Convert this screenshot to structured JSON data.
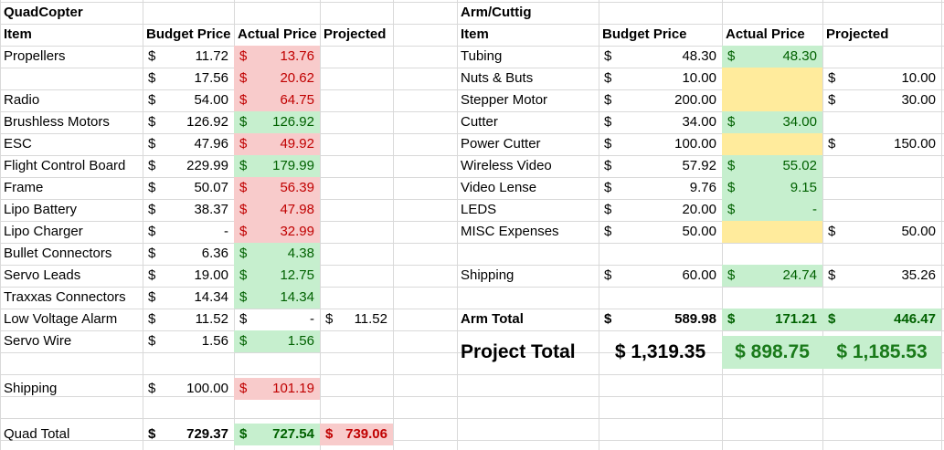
{
  "quad": {
    "title": "QuadCopter",
    "headers": {
      "item": "Item",
      "budget": "Budget Price",
      "actual": "Actual Price",
      "projected": "Projected"
    },
    "rows": [
      {
        "item": "Propellers",
        "budget": "11.72",
        "actual": "13.76",
        "actual_status": "red",
        "projected": ""
      },
      {
        "item": "",
        "budget": "17.56",
        "actual": "20.62",
        "actual_status": "red",
        "projected": ""
      },
      {
        "item": "Radio",
        "budget": "54.00",
        "actual": "64.75",
        "actual_status": "red",
        "projected": ""
      },
      {
        "item": "Brushless Motors",
        "budget": "126.92",
        "actual": "126.92",
        "actual_status": "green",
        "projected": ""
      },
      {
        "item": "ESC",
        "budget": "47.96",
        "actual": "49.92",
        "actual_status": "red",
        "projected": ""
      },
      {
        "item": "Flight Control Board",
        "budget": "229.99",
        "actual": "179.99",
        "actual_status": "green",
        "projected": ""
      },
      {
        "item": "Frame",
        "budget": "50.07",
        "actual": "56.39",
        "actual_status": "red",
        "projected": ""
      },
      {
        "item": "Lipo Battеry",
        "budget": "38.37",
        "actual": "47.98",
        "actual_status": "red",
        "projected": ""
      },
      {
        "item": "Lipo Charger",
        "budget": "-",
        "actual": "32.99",
        "actual_status": "red",
        "projected": ""
      },
      {
        "item": "Bullet Connectors",
        "budget": "6.36",
        "actual": "4.38",
        "actual_status": "green",
        "projected": ""
      },
      {
        "item": "Servo Leads",
        "budget": "19.00",
        "actual": "12.75",
        "actual_status": "green",
        "projected": ""
      },
      {
        "item": "Traxxas Connectors",
        "budget": "14.34",
        "actual": "14.34",
        "actual_status": "green",
        "projected": ""
      },
      {
        "item": "Low Voltage Alarm",
        "budget": "11.52",
        "actual": "-",
        "actual_status": "none",
        "projected": "11.52"
      },
      {
        "item": "Servo Wire",
        "budget": "1.56",
        "actual": "1.56",
        "actual_status": "green",
        "projected": ""
      }
    ],
    "shipping": {
      "item": "Shipping",
      "budget": "100.00",
      "actual": "101.19"
    },
    "total": {
      "item": "Quad Total",
      "budget": "729.37",
      "actual": "727.54",
      "projected": "739.06"
    }
  },
  "arm": {
    "title": "Arm/Cuttig",
    "headers": {
      "item": "Item",
      "budget": "Budget Price",
      "actual": "Actual Price",
      "projected": "Projected"
    },
    "rows": [
      {
        "item": "Tubing",
        "budget": "48.30",
        "actual": "48.30",
        "actual_status": "green",
        "projected": ""
      },
      {
        "item": "Nuts & Buts",
        "budget": "10.00",
        "actual": "",
        "actual_status": "yellow",
        "projected": "10.00"
      },
      {
        "item": "Stepper Motor",
        "budget": "200.00",
        "actual": "",
        "actual_status": "yellow",
        "projected": "30.00"
      },
      {
        "item": "Cutter",
        "budget": "34.00",
        "actual": "34.00",
        "actual_status": "green",
        "projected": ""
      },
      {
        "item": "Power Cutter",
        "budget": "100.00",
        "actual": "",
        "actual_status": "yellow",
        "projected": "150.00"
      },
      {
        "item": "Wireless Video",
        "budget": "57.92",
        "actual": "55.02",
        "actual_status": "green",
        "projected": ""
      },
      {
        "item": "Video Lense",
        "budget": "9.76",
        "actual": "9.15",
        "actual_status": "green",
        "projected": ""
      },
      {
        "item": "LEDS",
        "budget": "20.00",
        "actual": "-",
        "actual_status": "green",
        "projected": ""
      },
      {
        "item": "MISC Expenses",
        "budget": "50.00",
        "actual": "",
        "actual_status": "yellow",
        "projected": "50.00"
      }
    ],
    "shipping": {
      "item": "Shipping",
      "budget": "60.00",
      "actual": "24.74",
      "projected": "35.26"
    },
    "total": {
      "item": "Arm Total",
      "budget": "589.98",
      "actual": "171.21",
      "projected": "446.47"
    },
    "project_total": {
      "label": "Project Total",
      "budget": "1,319.35",
      "actual": "898.75",
      "projected": "1,185.53"
    }
  },
  "currency": "$"
}
